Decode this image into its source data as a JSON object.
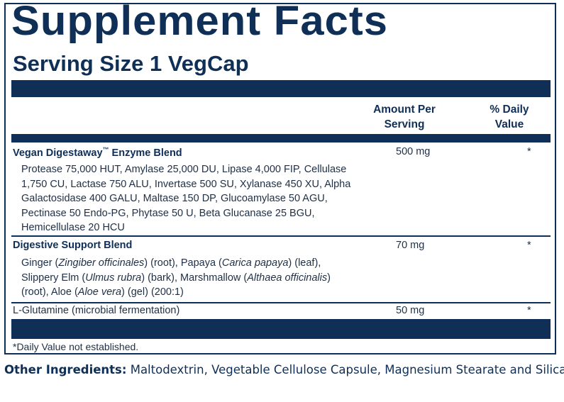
{
  "title": "Supplement Facts",
  "serving_size": "Serving Size 1 VegCap",
  "columns": {
    "amount_line1": "Amount Per",
    "amount_line2": "Serving",
    "dv_line1": "% Daily",
    "dv_line2": "Value"
  },
  "rows": [
    {
      "name_pre": "Vegan Digestaway",
      "name_tm": "™",
      "name_post": " Enzyme Blend",
      "amount": "500 mg",
      "dv": "*",
      "desc": "Protease 75,000 HUT, Amylase 25,000 DU, Lipase 4,000 FIP, Cellulase 1,750 CU, Lactase 750 ALU, Invertase 500 SU, Xylanase 450 XU, Alpha Galactosidase 400 GALU, Maltase 150 DP, Glucoamylase 50 AGU, Pectinase 50 Endo-PG, Phytase 50 U, Beta Glucanase 25 BGU, Hemicellulase 20 HCU"
    },
    {
      "name": "Digestive Support Blend",
      "amount": "70 mg",
      "dv": "*",
      "desc_parts": [
        "Ginger (",
        "Zingiber officinales",
        ") (root), Papaya (",
        "Carica papaya",
        ") (leaf), Slippery Elm (",
        "Ulmus rubra",
        ")  (bark), Marshmallow (",
        "Althaea officinalis",
        ") (root), Aloe (",
        "Aloe vera",
        ") (gel) (200:1)"
      ]
    },
    {
      "name": "L-Glutamine (microbial fermentation)",
      "amount": "50 mg",
      "dv": "*"
    }
  ],
  "footnote": "*Daily Value not established.",
  "other_ingredients": {
    "label": "Other Ingredients:",
    "text": " Maltodextrin, Vegetable Cellulose Capsule, Magnesium Stearate and Silica."
  }
}
